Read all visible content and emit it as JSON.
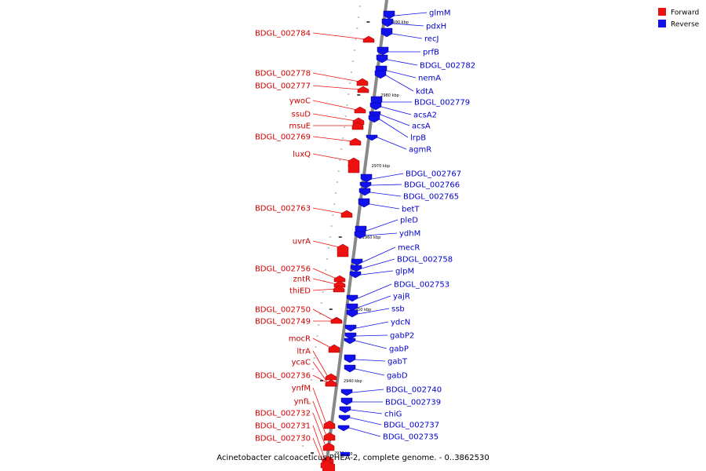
{
  "caption": "Acinetobacter calcoaceticus PHEA-2, complete genome. - 0..3862530",
  "legend": [
    {
      "label": "Forward",
      "color": "#ee1111"
    },
    {
      "label": "Reverse",
      "color": "#1111ee"
    }
  ],
  "colors": {
    "forward": "#ee1111",
    "reverse": "#1111ee",
    "backbone": "#888888"
  },
  "ticks": [
    "2990 kbp",
    "2980 kbp",
    "2970 kbp",
    "2960 kbp",
    "2950 kbp",
    "2940 kbp",
    "2930 kbp"
  ],
  "forward_genes": [
    "BDGL_002784",
    "BDGL_002778",
    "BDGL_002777",
    "ywoC",
    "ssuD",
    "msuE",
    "BDGL_002769",
    "luxQ",
    "BDGL_002763",
    "uvrA",
    "BDGL_002756",
    "zntR",
    "thiED",
    "BDGL_002750",
    "BDGL_002749",
    "mocR",
    "ltrA",
    "ycaC",
    "BDGL_002736",
    "ynfM",
    "ynfL",
    "BDGL_002732",
    "BDGL_002731",
    "BDGL_002730"
  ],
  "reverse_genes": [
    "glmM",
    "pdxH",
    "recJ",
    "prfB",
    "BDGL_002782",
    "nemA",
    "kdtA",
    "BDGL_002779",
    "acsA2",
    "acsA",
    "lrpB",
    "agmR",
    "BDGL_002767",
    "BDGL_002766",
    "BDGL_002765",
    "betT",
    "pleD",
    "ydhM",
    "mecR",
    "BDGL_002758",
    "glpM",
    "BDGL_002753",
    "yajR",
    "ssb",
    "ydcN",
    "gabP2",
    "gabP",
    "gabT",
    "gabD",
    "BDGL_002740",
    "BDGL_002739",
    "chiG",
    "BDGL_002737",
    "BDGL_002735"
  ]
}
